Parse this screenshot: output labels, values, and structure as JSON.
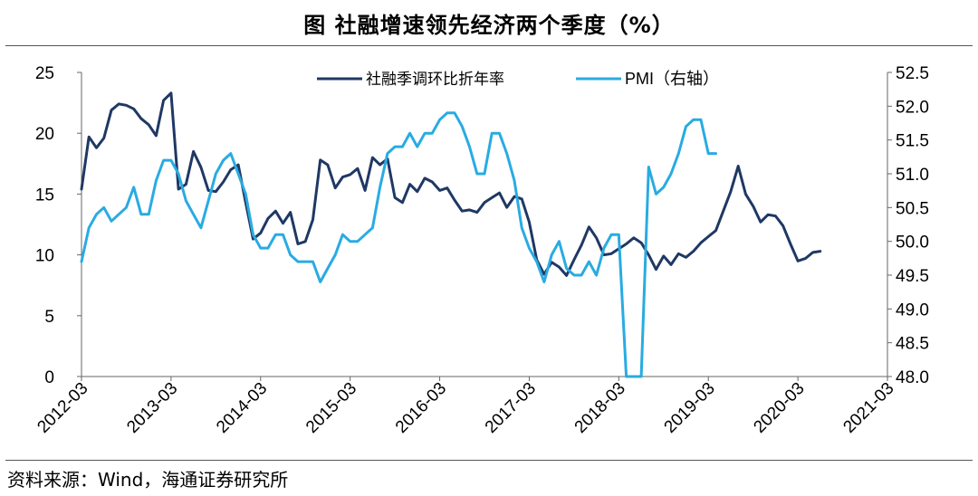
{
  "title": "图  社融增速领先经济两个季度（%）",
  "source": "资料来源：Wind，海通证券研究所",
  "chart_data": {
    "type": "line",
    "title": "图  社融增速领先经济两个季度（%）",
    "x_start": "2012-03",
    "x_ticks": [
      "2012-03",
      "2013-03",
      "2014-03",
      "2015-03",
      "2016-03",
      "2017-03",
      "2018-03",
      "2019-03",
      "2020-03",
      "2021-03"
    ],
    "ylim": [
      0,
      25
    ],
    "y_ticks": [
      "0",
      "5",
      "10",
      "15",
      "20",
      "25"
    ],
    "y2lim": [
      48.0,
      52.5
    ],
    "y2_ticks": [
      "48.0",
      "48.5",
      "49.0",
      "49.5",
      "50.0",
      "50.5",
      "51.0",
      "51.5",
      "52.0",
      "52.5"
    ],
    "legend_position": "top-center",
    "grid": false,
    "series": [
      {
        "name": "社融季调环比折年率",
        "axis": "left",
        "color": "#1f3864",
        "values": [
          15.4,
          19.7,
          18.8,
          19.6,
          21.9,
          22.4,
          22.3,
          22.0,
          21.2,
          20.7,
          19.8,
          22.7,
          23.3,
          15.4,
          15.8,
          18.5,
          17.2,
          15.3,
          15.2,
          16.0,
          17.0,
          17.4,
          14.3,
          11.3,
          11.8,
          13.0,
          13.6,
          12.6,
          13.5,
          10.9,
          11.1,
          12.9,
          17.8,
          17.4,
          15.5,
          16.4,
          16.6,
          17.1,
          15.3,
          18.0,
          17.4,
          17.9,
          14.7,
          14.3,
          15.8,
          15.2,
          16.3,
          16.0,
          15.3,
          15.5,
          14.5,
          13.6,
          13.7,
          13.5,
          14.3,
          14.7,
          15.1,
          13.9,
          14.8,
          14.6,
          12.7,
          9.6,
          8.4,
          9.4,
          9.0,
          8.3,
          9.6,
          10.8,
          12.3,
          11.4,
          10.0,
          10.1,
          10.5,
          10.9,
          11.4,
          11.0,
          10.0,
          8.8,
          9.9,
          9.2,
          10.1,
          9.8,
          10.3,
          11.0,
          11.5,
          12.0,
          13.6,
          15.2,
          17.3,
          15.0,
          14.0,
          12.7,
          13.3,
          13.2,
          12.4,
          10.9,
          9.5,
          9.7,
          10.2,
          10.3
        ]
      },
      {
        "name": "PMI（右轴）",
        "axis": "right",
        "color": "#29abe2",
        "values": [
          49.7,
          50.2,
          50.4,
          50.5,
          50.3,
          50.4,
          50.5,
          50.8,
          50.4,
          50.4,
          50.9,
          51.2,
          51.2,
          51.0,
          50.6,
          50.4,
          50.2,
          50.6,
          51.0,
          51.2,
          51.3,
          51.0,
          50.7,
          50.1,
          49.9,
          49.9,
          50.1,
          50.1,
          49.8,
          49.7,
          49.7,
          49.7,
          49.4,
          49.6,
          49.8,
          50.1,
          50.0,
          50.0,
          50.1,
          50.2,
          50.8,
          51.3,
          51.4,
          51.4,
          51.6,
          51.4,
          51.6,
          51.6,
          51.8,
          51.9,
          51.9,
          51.7,
          51.4,
          51.0,
          51.0,
          51.6,
          51.6,
          51.3,
          50.9,
          50.2,
          49.9,
          49.7,
          49.4,
          49.8,
          50.0,
          49.6,
          49.5,
          49.5,
          49.7,
          49.5,
          49.9,
          50.1,
          50.1,
          48.0,
          48.0,
          48.0,
          51.1,
          50.7,
          50.8,
          51.0,
          51.3,
          51.7,
          51.8,
          51.8,
          51.3,
          51.3
        ]
      }
    ]
  }
}
